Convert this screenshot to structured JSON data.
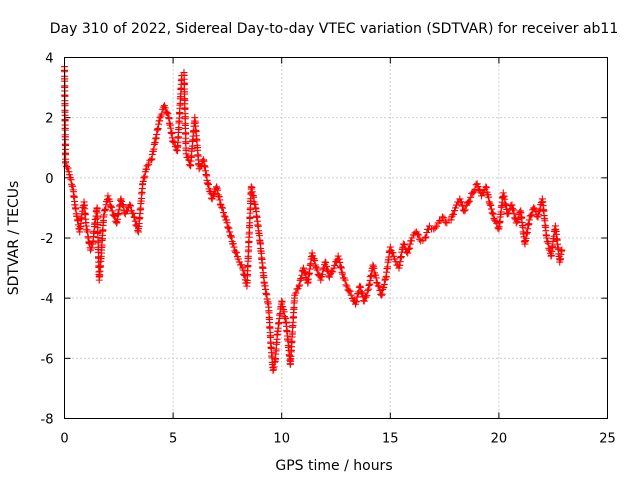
{
  "chart_data": {
    "type": "scatter",
    "title": "Day 310 of 2022, Sidereal Day-to-day VTEC variation (SDTVAR) for receiver ab11",
    "xlabel": "GPS time / hours",
    "ylabel": "SDTVAR / TECUs",
    "xlim": [
      0,
      25
    ],
    "ylim": [
      -8,
      4
    ],
    "xticks": [
      0,
      5,
      10,
      15,
      20,
      25
    ],
    "yticks": [
      -8,
      -6,
      -4,
      -2,
      0,
      2,
      4
    ],
    "xtick_labels": [
      "0",
      "5",
      "10",
      "15",
      "20",
      "25"
    ],
    "ytick_labels": [
      "-8",
      "-6",
      "-4",
      "-2",
      "0",
      "2",
      "4"
    ],
    "grid": true,
    "marker": "+",
    "series": [
      {
        "name": "SDTVAR",
        "color": "#ff0000",
        "x": [
          0.0,
          0.05,
          0.2,
          0.4,
          0.5,
          0.6,
          0.7,
          0.8,
          0.9,
          1.0,
          1.1,
          1.2,
          1.3,
          1.4,
          1.5,
          1.6,
          1.7,
          1.8,
          2.0,
          2.2,
          2.4,
          2.6,
          2.8,
          3.0,
          3.2,
          3.4,
          3.6,
          3.8,
          4.0,
          4.2,
          4.4,
          4.6,
          4.8,
          5.0,
          5.2,
          5.4,
          5.5,
          5.6,
          5.8,
          6.0,
          6.2,
          6.4,
          6.6,
          6.8,
          7.0,
          7.2,
          7.4,
          7.6,
          7.8,
          8.0,
          8.2,
          8.4,
          8.6,
          8.8,
          9.0,
          9.2,
          9.4,
          9.5,
          9.6,
          9.7,
          9.8,
          10.0,
          10.2,
          10.4,
          10.6,
          10.8,
          11.0,
          11.2,
          11.4,
          11.6,
          11.8,
          12.0,
          12.2,
          12.4,
          12.6,
          12.8,
          13.0,
          13.2,
          13.4,
          13.6,
          13.8,
          14.0,
          14.2,
          14.4,
          14.6,
          14.8,
          15.0,
          15.2,
          15.4,
          15.6,
          15.8,
          16.0,
          16.2,
          16.4,
          16.6,
          16.8,
          17.0,
          17.2,
          17.4,
          17.6,
          17.8,
          18.0,
          18.2,
          18.4,
          18.6,
          18.8,
          19.0,
          19.2,
          19.4,
          19.6,
          19.8,
          20.0,
          20.2,
          20.4,
          20.6,
          20.8,
          21.0,
          21.2,
          21.4,
          21.6,
          21.8,
          22.0,
          22.2,
          22.4,
          22.6,
          22.8,
          22.9
        ],
        "y": [
          3.7,
          0.5,
          0.2,
          -0.4,
          -1.0,
          -1.4,
          -1.8,
          -1.2,
          -0.8,
          -1.6,
          -2.0,
          -2.4,
          -2.2,
          -1.5,
          -1.0,
          -3.4,
          -2.5,
          -1.3,
          -0.6,
          -1.1,
          -1.5,
          -0.7,
          -1.2,
          -0.9,
          -1.3,
          -1.8,
          -0.2,
          0.4,
          0.6,
          1.3,
          2.0,
          2.4,
          2.0,
          1.2,
          0.9,
          3.4,
          3.5,
          0.8,
          0.4,
          2.0,
          0.3,
          0.6,
          -0.2,
          -0.7,
          -0.3,
          -0.9,
          -1.3,
          -1.8,
          -2.3,
          -2.7,
          -3.0,
          -3.6,
          -0.3,
          -1.0,
          -2.1,
          -3.5,
          -4.3,
          -5.5,
          -6.4,
          -6.1,
          -5.2,
          -4.1,
          -4.8,
          -6.2,
          -3.9,
          -3.6,
          -3.0,
          -3.5,
          -2.5,
          -3.0,
          -3.4,
          -2.8,
          -3.3,
          -3.0,
          -2.6,
          -3.2,
          -3.6,
          -3.9,
          -4.2,
          -3.6,
          -4.1,
          -3.7,
          -2.9,
          -3.5,
          -3.9,
          -3.3,
          -2.3,
          -2.7,
          -3.0,
          -2.2,
          -2.5,
          -2.0,
          -1.8,
          -2.1,
          -2.0,
          -1.6,
          -1.7,
          -1.5,
          -1.3,
          -1.5,
          -1.4,
          -1.0,
          -0.7,
          -1.1,
          -0.8,
          -0.5,
          -0.2,
          -0.6,
          -0.3,
          -0.9,
          -1.4,
          -1.7,
          -0.5,
          -1.2,
          -0.9,
          -1.5,
          -1.1,
          -2.2,
          -1.4,
          -1.0,
          -1.3,
          -0.7,
          -2.0,
          -2.6,
          -1.6,
          -2.8,
          -2.4
        ]
      }
    ]
  }
}
